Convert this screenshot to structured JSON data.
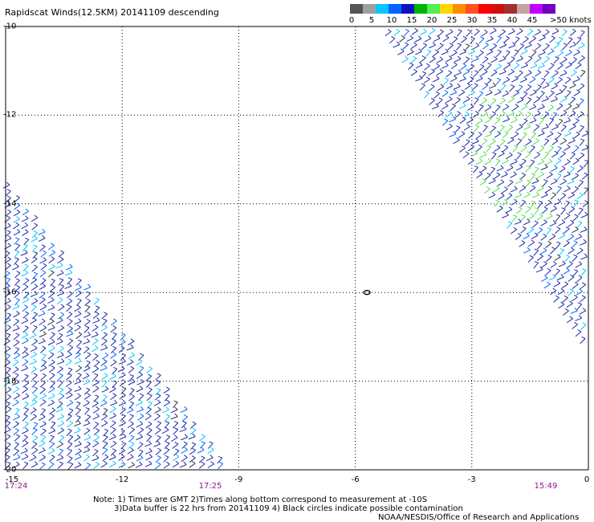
{
  "title": "Rapidscat Winds(12.5KM) 20141109 descending",
  "legend": {
    "colors": [
      "#555555",
      "#a0a0a0",
      "#00c8ff",
      "#0064ff",
      "#1010c0",
      "#00b400",
      "#50f050",
      "#ffd700",
      "#ff8c00",
      "#ff5020",
      "#ff0000",
      "#d01010",
      "#a03030",
      "#c8a0a0",
      "#c000ff",
      "#7000c0"
    ],
    "labels": [
      "0",
      "5",
      "10",
      "15",
      "20",
      "25",
      "30",
      "35",
      "40",
      "45"
    ],
    "last_label": ">50",
    "unit": "knots"
  },
  "axes": {
    "y_labels": [
      "-10",
      "-12",
      "-14",
      "-16",
      "-18",
      "-20"
    ],
    "x_labels": [
      "-15",
      "-12",
      "-9",
      "-6",
      "-3",
      "0"
    ]
  },
  "times": [
    "17:24",
    "17:25",
    "15:49"
  ],
  "notes": {
    "line1": "Note: 1) Times are GMT 2)Times along bottom correspond to measurement at -10S",
    "line2": "3)Data buffer is 22 hrs from 20141109 4) Black circles indicate possible contamination",
    "line3": "NOAA/NESDIS/Office of Research and Applications"
  },
  "map": {
    "lon_range": [
      -15,
      0
    ],
    "lat_range": [
      -20,
      -10
    ],
    "swaths": [
      {
        "name": "west-swath",
        "corners": [
          [
            -15,
            -13.4
          ],
          [
            -9,
            -20
          ],
          [
            -15,
            -20
          ]
        ],
        "dominant_speed_knots": "15-20"
      },
      {
        "name": "east-swath",
        "corners": [
          [
            -5.8,
            -10
          ],
          [
            0,
            -10
          ],
          [
            0,
            -17.4
          ]
        ],
        "dominant_speed_knots": "15-20"
      }
    ],
    "contamination_marker": {
      "lon": -5.7,
      "lat": -16.0
    }
  }
}
